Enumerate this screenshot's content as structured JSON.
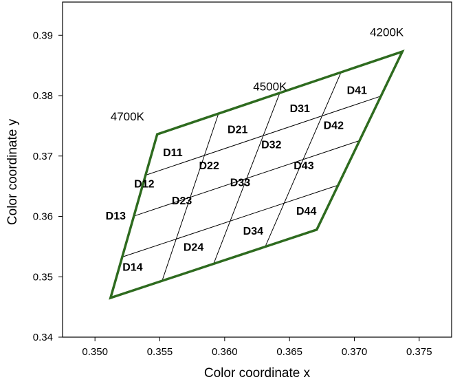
{
  "chart_data": {
    "type": "scatter",
    "title": "",
    "xlabel": "Color coordinate x",
    "ylabel": "Color coordinate y",
    "xlim": [
      0.3475,
      0.3775
    ],
    "ylim": [
      0.34,
      0.3955
    ],
    "xticks": [
      "0.350",
      "0.355",
      "0.360",
      "0.365",
      "0.370",
      "0.375"
    ],
    "yticks": [
      "0.34",
      "0.35",
      "0.36",
      "0.37",
      "0.38",
      "0.39"
    ],
    "grid": false,
    "outline": {
      "color": "#2e6b1f",
      "corners": [
        [
          0.3548,
          0.3736
        ],
        [
          0.3737,
          0.3873
        ],
        [
          0.3671,
          0.3578
        ],
        [
          0.3512,
          0.3465
        ]
      ]
    },
    "grid_lines_color": "#000000",
    "cct_labels": [
      {
        "text": "4700K",
        "x": 0.3525,
        "y": 0.3765
      },
      {
        "text": "4500K",
        "x": 0.3635,
        "y": 0.3815
      },
      {
        "text": "4200K",
        "x": 0.3725,
        "y": 0.3905
      }
    ],
    "bins": [
      {
        "name": "D11",
        "x": 0.356,
        "y": 0.3705
      },
      {
        "name": "D12",
        "x": 0.3538,
        "y": 0.3653
      },
      {
        "name": "D13",
        "x": 0.3516,
        "y": 0.36
      },
      {
        "name": "D14",
        "x": 0.3529,
        "y": 0.3515
      },
      {
        "name": "D21",
        "x": 0.361,
        "y": 0.3743
      },
      {
        "name": "D22",
        "x": 0.3588,
        "y": 0.3683
      },
      {
        "name": "D23",
        "x": 0.3567,
        "y": 0.3625
      },
      {
        "name": "D24",
        "x": 0.3576,
        "y": 0.3548
      },
      {
        "name": "D31",
        "x": 0.3658,
        "y": 0.3778
      },
      {
        "name": "D32",
        "x": 0.3636,
        "y": 0.3718
      },
      {
        "name": "D33",
        "x": 0.3612,
        "y": 0.3655
      },
      {
        "name": "D34",
        "x": 0.3622,
        "y": 0.3575
      },
      {
        "name": "D41",
        "x": 0.3702,
        "y": 0.3808
      },
      {
        "name": "D42",
        "x": 0.3684,
        "y": 0.375
      },
      {
        "name": "D43",
        "x": 0.3661,
        "y": 0.3683
      },
      {
        "name": "D44",
        "x": 0.3663,
        "y": 0.3608
      }
    ]
  }
}
